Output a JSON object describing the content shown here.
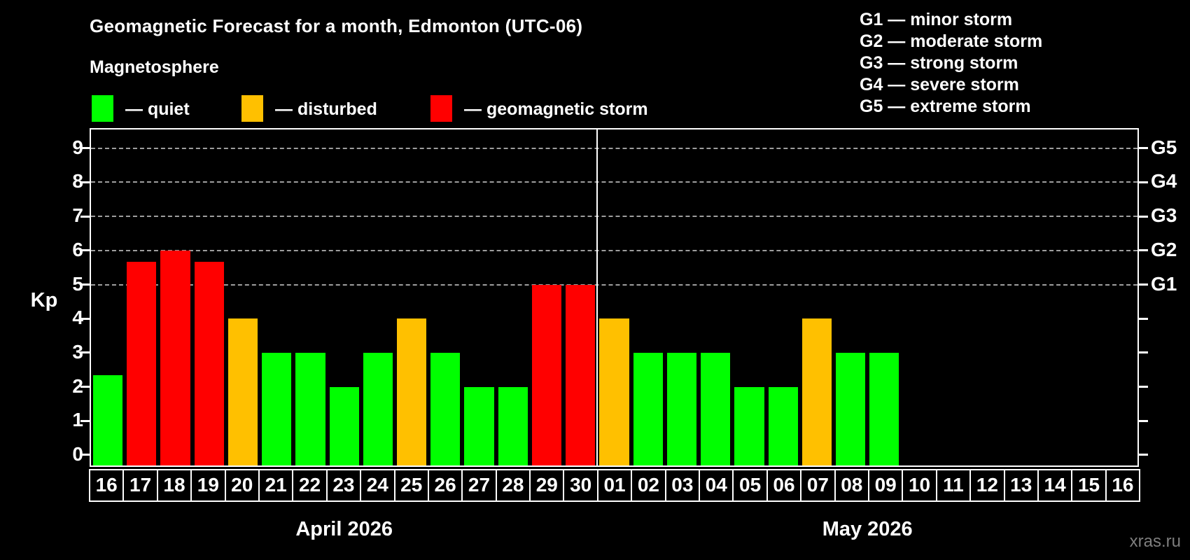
{
  "title": "Geomagnetic Forecast for a month, Edmonton (UTC-06)",
  "subtitle": "Magnetosphere",
  "legend": {
    "items": [
      {
        "key": "quiet",
        "label": "— quiet"
      },
      {
        "key": "disturbed",
        "label": "— disturbed"
      },
      {
        "key": "storm",
        "label": "— geomagnetic storm"
      }
    ]
  },
  "g_scale_legend": {
    "lines": [
      "G1 — minor storm",
      "G2 — moderate storm",
      "G3 — strong storm",
      "G4 — severe storm",
      "G5 — extreme storm"
    ]
  },
  "y_axis": {
    "label": "Kp",
    "ticks": [
      9,
      8,
      7,
      6,
      5,
      4,
      3,
      2,
      1,
      0
    ]
  },
  "right_axis": {
    "labels": [
      {
        "text": "G5",
        "kp": 9
      },
      {
        "text": "G4",
        "kp": 8
      },
      {
        "text": "G3",
        "kp": 7
      },
      {
        "text": "G2",
        "kp": 6
      },
      {
        "text": "G1",
        "kp": 5
      }
    ]
  },
  "watermark": "xras.ru",
  "colors": {
    "quiet": "#00ff00",
    "disturbed": "#ffc000",
    "storm": "#ff0000",
    "grid": "#9e9e9e",
    "axis": "#ffffff",
    "background": "#000000"
  },
  "chart_data": {
    "type": "bar",
    "title": "Geomagnetic Forecast for a month, Edmonton (UTC-06)",
    "xlabel": "",
    "ylabel": "Kp",
    "ylim": [
      0,
      9
    ],
    "grid_levels_kp": [
      5,
      6,
      7,
      8,
      9
    ],
    "legend_position": "top-left",
    "g_levels": {
      "G1": 5,
      "G2": 6,
      "G3": 7,
      "G4": 8,
      "G5": 9
    },
    "months": [
      {
        "label": "April 2026",
        "days": [
          {
            "day": "16",
            "kp": 2.33,
            "status": "quiet"
          },
          {
            "day": "17",
            "kp": 5.67,
            "status": "storm"
          },
          {
            "day": "18",
            "kp": 6,
            "status": "storm"
          },
          {
            "day": "19",
            "kp": 5.67,
            "status": "storm"
          },
          {
            "day": "20",
            "kp": 4,
            "status": "disturbed"
          },
          {
            "day": "21",
            "kp": 3,
            "status": "quiet"
          },
          {
            "day": "22",
            "kp": 3,
            "status": "quiet"
          },
          {
            "day": "23",
            "kp": 2,
            "status": "quiet"
          },
          {
            "day": "24",
            "kp": 3,
            "status": "quiet"
          },
          {
            "day": "25",
            "kp": 4,
            "status": "disturbed"
          },
          {
            "day": "26",
            "kp": 3,
            "status": "quiet"
          },
          {
            "day": "27",
            "kp": 2,
            "status": "quiet"
          },
          {
            "day": "28",
            "kp": 2,
            "status": "quiet"
          },
          {
            "day": "29",
            "kp": 5,
            "status": "storm"
          },
          {
            "day": "30",
            "kp": 5,
            "status": "storm"
          }
        ]
      },
      {
        "label": "May 2026",
        "days": [
          {
            "day": "01",
            "kp": 4,
            "status": "disturbed"
          },
          {
            "day": "02",
            "kp": 3,
            "status": "quiet"
          },
          {
            "day": "03",
            "kp": 3,
            "status": "quiet"
          },
          {
            "day": "04",
            "kp": 3,
            "status": "quiet"
          },
          {
            "day": "05",
            "kp": 2,
            "status": "quiet"
          },
          {
            "day": "06",
            "kp": 2,
            "status": "quiet"
          },
          {
            "day": "07",
            "kp": 4,
            "status": "disturbed"
          },
          {
            "day": "08",
            "kp": 3,
            "status": "quiet"
          },
          {
            "day": "09",
            "kp": 3,
            "status": "quiet"
          },
          {
            "day": "10",
            "kp": null,
            "status": null
          },
          {
            "day": "11",
            "kp": null,
            "status": null
          },
          {
            "day": "12",
            "kp": null,
            "status": null
          },
          {
            "day": "13",
            "kp": null,
            "status": null
          },
          {
            "day": "14",
            "kp": null,
            "status": null
          },
          {
            "day": "15",
            "kp": null,
            "status": null
          },
          {
            "day": "16",
            "kp": null,
            "status": null
          }
        ]
      }
    ]
  }
}
